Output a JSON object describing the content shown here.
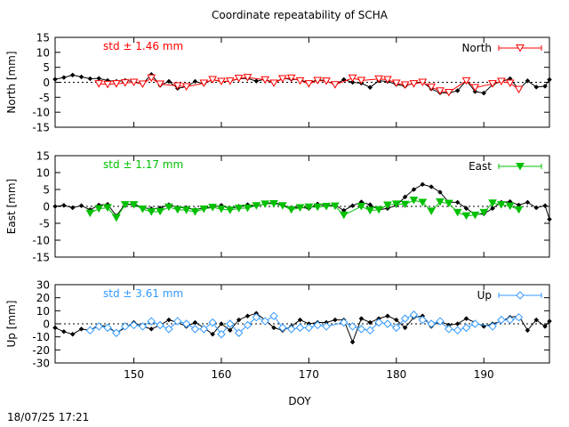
{
  "chart_data": {
    "type": "line",
    "title": "Coordinate repeatability of SCHA",
    "xlabel": "DOY",
    "x_ticks": [
      150,
      160,
      170,
      180,
      190
    ],
    "xlim": [
      141,
      197.5
    ],
    "timestamp": "18/07/25 17:21",
    "colors": {
      "reference": "#000000",
      "north": "#ff0000",
      "east": "#00c000",
      "up": "#3399ff"
    },
    "panels": [
      {
        "id": "north",
        "ylabel": "North [mm]",
        "ylim": [
          -15,
          15
        ],
        "y_ticks": [
          -15,
          -10,
          -5,
          0,
          5,
          10,
          15
        ],
        "legend": "North",
        "std_label": "std ± 1.46 mm",
        "marker": "triangle-down-open",
        "reference": {
          "name": "reference",
          "x": [
            141,
            142,
            143,
            144,
            145,
            146,
            147,
            148,
            149,
            150,
            151,
            152,
            153,
            154,
            155,
            156,
            157,
            158,
            159,
            160,
            161,
            162,
            163,
            164,
            165,
            166,
            167,
            168,
            169,
            170,
            171,
            172,
            173,
            174,
            175,
            176,
            177,
            178,
            179,
            180,
            181,
            182,
            183,
            184,
            185,
            186,
            187,
            188,
            189,
            190,
            191,
            192,
            193,
            194,
            195,
            196,
            197,
            197.5
          ],
          "values": [
            1,
            1.6,
            2.4,
            1.8,
            1.2,
            1.3,
            0.6,
            0.3,
            0.6,
            0.3,
            -0.6,
            2.6,
            -1.0,
            0.3,
            -2.0,
            -1.5,
            0.3,
            -0.5,
            0.9,
            0.2,
            0.4,
            1.2,
            1.3,
            0.4,
            1.0,
            -0.2,
            1.3,
            1.0,
            0.9,
            -0.3,
            0.9,
            0.5,
            -0.8,
            0.9,
            0.0,
            -0.3,
            -1.7,
            0.5,
            0.3,
            -0.7,
            -1.3,
            -0.2,
            0.1,
            -2.2,
            -3.5,
            -3.6,
            -2.8,
            0.6,
            -3.1,
            -3.6,
            -0.8,
            0.3,
            1.2,
            -2.4,
            0.5,
            -1.6,
            -1.3,
            0.9
          ]
        },
        "series": {
          "name": "North",
          "x": [
            146,
            147,
            148,
            149,
            150,
            151,
            152,
            153,
            155,
            156,
            158,
            159,
            160,
            161,
            162,
            163,
            165,
            166,
            167,
            168,
            169,
            170,
            171,
            172,
            173,
            175,
            176,
            178,
            179,
            180,
            181,
            182,
            183,
            184,
            185,
            186,
            188,
            189,
            191,
            192,
            193,
            194
          ],
          "values": [
            -0.5,
            -0.7,
            -0.5,
            -0.2,
            0.0,
            -0.6,
            1.4,
            -0.6,
            -1.2,
            -1.5,
            -0.3,
            0.9,
            0.3,
            0.4,
            1.3,
            1.6,
            0.8,
            -0.3,
            1.2,
            1.4,
            0.5,
            -0.5,
            0.6,
            0.4,
            -0.8,
            1.4,
            0.6,
            1.1,
            0.9,
            -0.3,
            -0.9,
            -0.5,
            0.0,
            -1.6,
            -2.9,
            -3.4,
            0.5,
            -1.8,
            -0.5,
            0.3,
            -0.3,
            -2.4
          ]
        }
      },
      {
        "id": "east",
        "ylabel": "East [mm]",
        "ylim": [
          -15,
          15
        ],
        "y_ticks": [
          -15,
          -10,
          -5,
          0,
          5,
          10,
          15
        ],
        "legend": "East",
        "std_label": "std ± 1.17 mm",
        "marker": "triangle-down-filled",
        "reference": {
          "name": "reference",
          "x": [
            141,
            142,
            143,
            144,
            145,
            146,
            147,
            148,
            149,
            150,
            151,
            152,
            153,
            154,
            155,
            156,
            157,
            158,
            159,
            160,
            161,
            162,
            163,
            164,
            165,
            166,
            167,
            168,
            169,
            170,
            171,
            172,
            173,
            174,
            175,
            176,
            177,
            178,
            179,
            180,
            181,
            182,
            183,
            184,
            185,
            186,
            187,
            188,
            189,
            190,
            191,
            192,
            193,
            194,
            195,
            196,
            197,
            197.5
          ],
          "values": [
            0,
            0.3,
            -0.4,
            0.2,
            -1.0,
            0.4,
            0.6,
            -2.8,
            0.6,
            0.7,
            -0.4,
            -0.7,
            -0.5,
            0.5,
            -0.3,
            -0.4,
            -1.0,
            -0.4,
            -0.2,
            0.3,
            -0.7,
            0.0,
            0.5,
            0.1,
            0.8,
            1.2,
            0.3,
            -0.4,
            -0.3,
            -0.6,
            0.7,
            0.2,
            0.4,
            -1.2,
            0.2,
            1.3,
            0.5,
            -1.0,
            -0.6,
            0.3,
            2.8,
            5.0,
            6.5,
            5.8,
            4.2,
            1.2,
            1.2,
            -0.6,
            -2.4,
            -2.2,
            -0.6,
            1.2,
            1.4,
            0.4,
            1.2,
            -0.4,
            0.2,
            -3.8
          ]
        },
        "series": {
          "name": "East",
          "x": [
            145,
            146,
            147,
            148,
            149,
            150,
            151,
            152,
            153,
            154,
            155,
            156,
            157,
            158,
            159,
            160,
            161,
            162,
            163,
            164,
            165,
            166,
            167,
            168,
            169,
            170,
            171,
            172,
            173,
            174,
            176,
            177,
            178,
            179,
            180,
            181,
            182,
            183,
            184,
            185,
            186,
            187,
            188,
            189,
            190,
            191,
            192,
            193,
            194
          ],
          "values": [
            -2.0,
            -0.7,
            -0.4,
            -3.4,
            0.5,
            0.5,
            -0.8,
            -1.6,
            -1.5,
            -0.2,
            -1.0,
            -1.1,
            -1.6,
            -0.8,
            -0.3,
            -0.8,
            -1.1,
            -0.6,
            -0.5,
            0.2,
            0.7,
            0.8,
            0.2,
            -1.0,
            -0.4,
            -0.2,
            -0.2,
            0.0,
            0.1,
            -2.6,
            0.0,
            -1.2,
            -1.0,
            0.4,
            0.7,
            0.6,
            1.8,
            1.2,
            -1.4,
            1.3,
            0.9,
            -1.8,
            -2.8,
            -2.6,
            -1.8,
            1.0,
            0.5,
            0.1,
            -1.0
          ]
        }
      },
      {
        "id": "up",
        "ylabel": "Up [mm]",
        "ylim": [
          -30,
          30
        ],
        "y_ticks": [
          -30,
          -20,
          -10,
          0,
          10,
          20,
          30
        ],
        "legend": "Up",
        "std_label": "std ± 3.61 mm",
        "marker": "diamond-open",
        "reference": {
          "name": "reference",
          "x": [
            141,
            142,
            143,
            144,
            145,
            146,
            147,
            148,
            149,
            150,
            151,
            152,
            153,
            154,
            155,
            156,
            157,
            158,
            159,
            160,
            161,
            162,
            163,
            164,
            165,
            166,
            167,
            168,
            169,
            170,
            171,
            172,
            173,
            174,
            175,
            176,
            177,
            178,
            179,
            180,
            181,
            182,
            183,
            184,
            185,
            186,
            187,
            188,
            189,
            190,
            191,
            192,
            193,
            194,
            195,
            196,
            197,
            197.5
          ],
          "values": [
            -3,
            -6,
            -8,
            -4,
            -5,
            -1,
            -2,
            -7,
            -3,
            1,
            -2,
            -4,
            -1,
            3,
            1,
            -2,
            1,
            -3,
            -8,
            0,
            -5,
            3,
            6,
            8,
            3,
            -3,
            -5,
            -2,
            3,
            0,
            1,
            1,
            3,
            3,
            -14,
            4,
            1,
            4,
            6,
            3,
            -3,
            5,
            6,
            -2,
            2,
            -1,
            0,
            4,
            1,
            -2,
            0,
            2,
            5,
            6,
            -5,
            3,
            -2,
            2
          ]
        },
        "series": {
          "name": "Up",
          "x": [
            145,
            146,
            147,
            148,
            149,
            150,
            151,
            152,
            153,
            154,
            155,
            156,
            157,
            158,
            159,
            160,
            161,
            162,
            163,
            164,
            165,
            166,
            167,
            168,
            169,
            170,
            171,
            172,
            174,
            175,
            176,
            177,
            178,
            179,
            180,
            181,
            182,
            183,
            184,
            185,
            186,
            187,
            188,
            189,
            191,
            192,
            193,
            194
          ],
          "values": [
            -5,
            -2,
            -3,
            -7,
            -2,
            -1,
            -2,
            2,
            -1,
            -4,
            2,
            0,
            -4,
            -4,
            1,
            -8,
            0,
            -7,
            -1,
            5,
            2,
            6,
            -3,
            -4,
            -3,
            -3,
            -1,
            -2,
            1,
            -2,
            -4,
            -5,
            1,
            0,
            -3,
            4,
            7,
            3,
            0,
            2,
            -4,
            -5,
            -3,
            0,
            -2,
            3,
            3,
            5
          ]
        }
      }
    ]
  }
}
